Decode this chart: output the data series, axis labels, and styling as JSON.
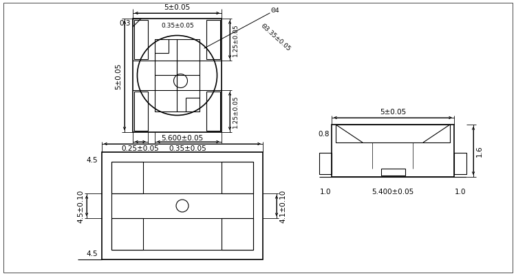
{
  "bg_color": "#ffffff",
  "line_color": "#000000",
  "fig_width": 7.5,
  "fig_height": 4.02,
  "dpi": 100,
  "top_view": {
    "dim_top": "5±0.05",
    "dim_left": "5±0.05",
    "dim_bot_left": "0.25±0.05",
    "dim_bot_right": "0.35±0.05",
    "dim_right_top": "1.25±0.05",
    "dim_right_bot": "1.25±0.05",
    "dim_inner_top": "0.35±0.05",
    "dim_circle1": "Θ4",
    "dim_circle2": "Θ3.35±0.05",
    "dim_notch": "0.3"
  },
  "side_view": {
    "label_top": "5±0.05",
    "label_08": "0.8",
    "label_16": "1.6",
    "label_10l": "1.0",
    "label_bot": "5.400±0.05",
    "label_10r": "1.0"
  },
  "bottom_view": {
    "label_top": "5.600±0.05",
    "label_45t": "4.5",
    "label_left": "4.5±0.10",
    "label_45b": "4.5",
    "label_right": "4.1±0.10"
  }
}
